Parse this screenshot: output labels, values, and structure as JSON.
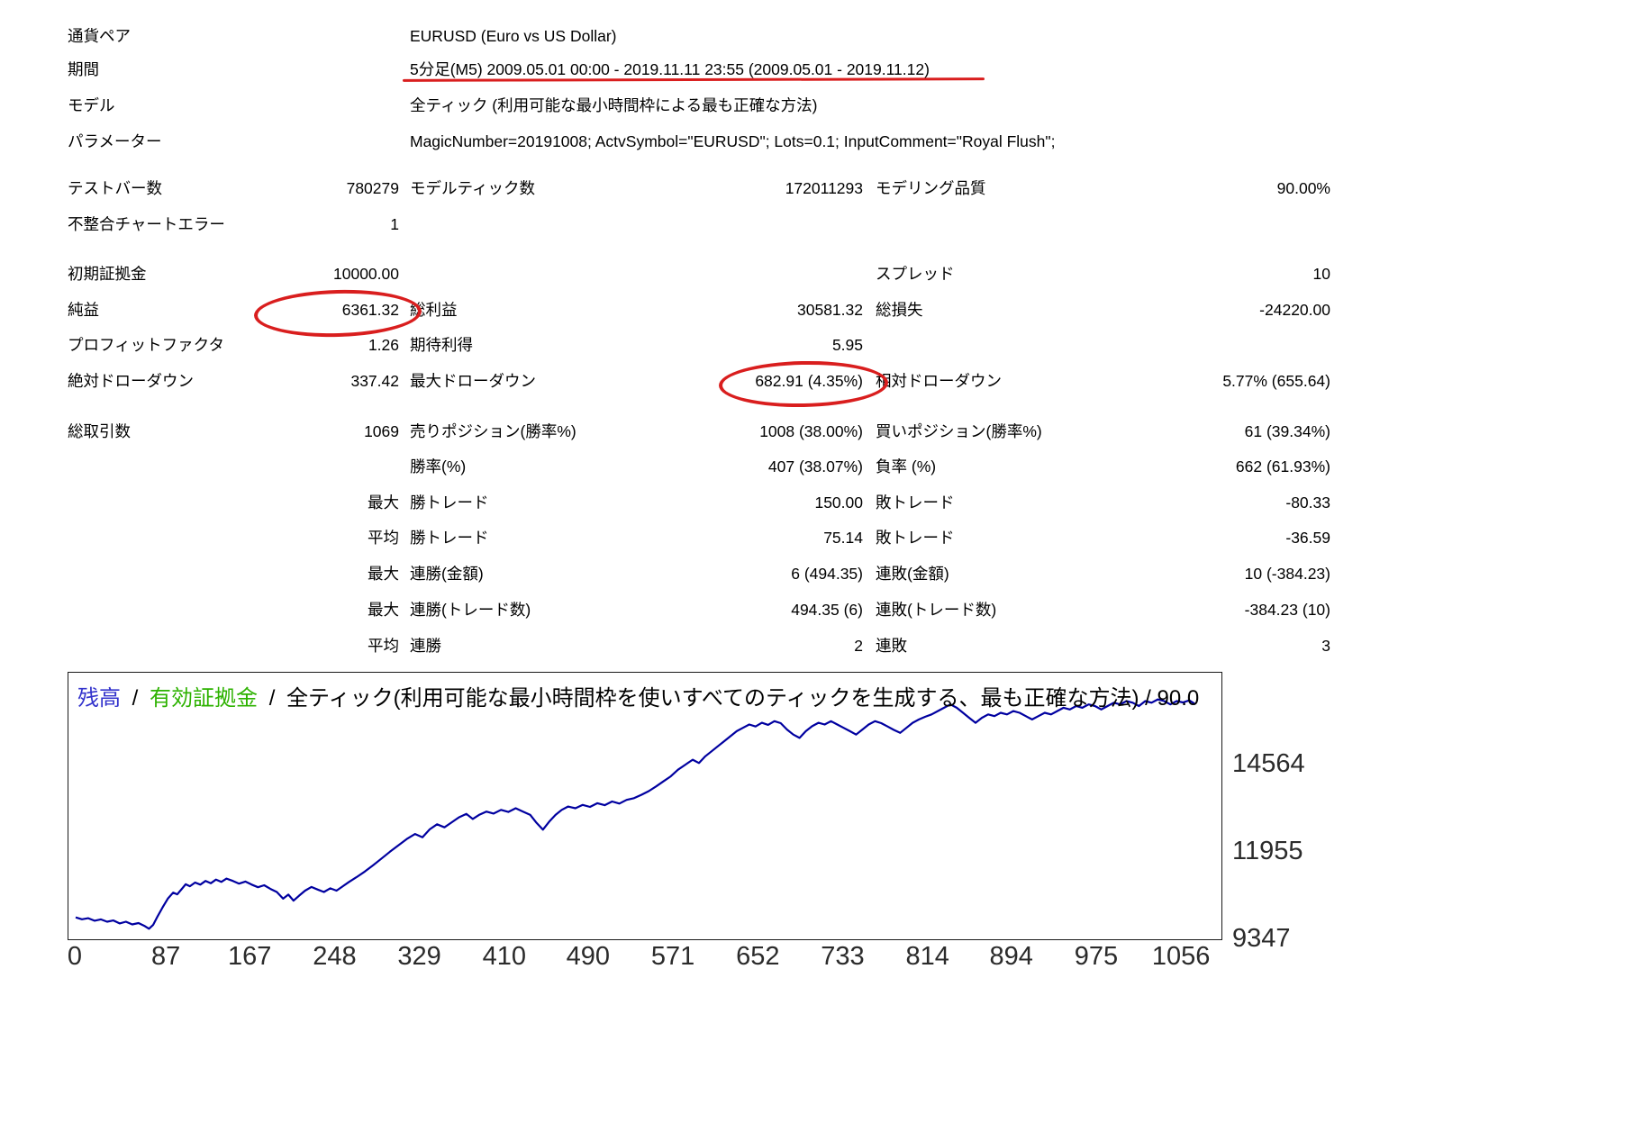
{
  "report": {
    "info": [
      {
        "label": "通貨ペア",
        "value": "EURUSD (Euro vs US Dollar)"
      },
      {
        "label": "期間",
        "value": "5分足(M5) 2009.05.01 00:00 - 2019.11.11 23:55 (2009.05.01 - 2019.11.12)"
      },
      {
        "label": "モデル",
        "value": "全ティック (利用可能な最小時間枠による最も正確な方法)"
      },
      {
        "label": "パラメーター",
        "value": "MagicNumber=20191008; ActvSymbol=\"EURUSD\"; Lots=0.1; InputComment=\"Royal Flush\";"
      }
    ],
    "test_bars": {
      "label": "テストバー数",
      "value": "780279"
    },
    "model_ticks": {
      "label": "モデルティック数",
      "value": "172011293"
    },
    "modelling_quality": {
      "label": "モデリング品質",
      "value": "90.00%"
    },
    "mismatched_errors": {
      "label": "不整合チャートエラー",
      "value": "1"
    },
    "initial_deposit": {
      "label": "初期証拠金",
      "value": "10000.00"
    },
    "spread": {
      "label": "スプレッド",
      "value": "10"
    },
    "net_profit": {
      "label": "純益",
      "value": "6361.32"
    },
    "gross_profit": {
      "label": "総利益",
      "value": "30581.32"
    },
    "gross_loss": {
      "label": "総損失",
      "value": "-24220.00"
    },
    "profit_factor": {
      "label": "プロフィットファクタ",
      "value": "1.26"
    },
    "expected_payoff": {
      "label": "期待利得",
      "value": "5.95"
    },
    "absolute_drawdown": {
      "label": "絶対ドローダウン",
      "value": "337.42"
    },
    "maximal_drawdown": {
      "label": "最大ドローダウン",
      "value": "682.91 (4.35%)"
    },
    "relative_drawdown": {
      "label": "相対ドローダウン",
      "value": "5.77% (655.64)"
    },
    "total_trades": {
      "label": "総取引数",
      "value": "1069"
    },
    "short_positions": {
      "label": "売りポジション(勝率%)",
      "value": "1008 (38.00%)"
    },
    "long_positions": {
      "label": "買いポジション(勝率%)",
      "value": "61 (39.34%)"
    },
    "profit_trades": {
      "label": "勝率(%)",
      "value": "407 (38.07%)"
    },
    "loss_trades": {
      "label": "負率 (%)",
      "value": "662 (61.93%)"
    },
    "largest": {
      "prefix": "最大",
      "win_label": "勝トレード",
      "win_value": "150.00",
      "loss_label": "敗トレード",
      "loss_value": "-80.33"
    },
    "average": {
      "prefix": "平均",
      "win_label": "勝トレード",
      "win_value": "75.14",
      "loss_label": "敗トレード",
      "loss_value": "-36.59"
    },
    "max_consecutive_amount": {
      "prefix": "最大",
      "win_label": "連勝(金額)",
      "win_value": "6 (494.35)",
      "loss_label": "連敗(金額)",
      "loss_value": "10 (-384.23)"
    },
    "max_consecutive_count": {
      "prefix": "最大",
      "win_label": "連勝(トレード数)",
      "win_value": "494.35 (6)",
      "loss_label": "連敗(トレード数)",
      "loss_value": "-384.23 (10)"
    },
    "avg_consecutive": {
      "prefix": "平均",
      "win_label": "連勝",
      "win_value": "2",
      "loss_label": "連敗",
      "loss_value": "3"
    }
  },
  "chart": {
    "legend": {
      "balance": "残高",
      "equity": "有効証拠金",
      "separator": "/",
      "description": "全ティック(利用可能な最小時間枠を使いすべてのティックを生成する、最も正確な方法) / 90.0"
    }
  },
  "colors": {
    "annotation_red": "#d91e1e",
    "legend_balance_blue": "#3333cc",
    "legend_equity_green": "#2db200",
    "curve_blue": "#0000a0",
    "axis_text": "#2b2b2b"
  },
  "chart_data": {
    "type": "line",
    "title": "残高 / 有効証拠金 / 全ティック(利用可能な最小時間枠を使いすべてのティックを生成する、最も正確な方法) / 90.0",
    "xlabel": "",
    "ylabel": "",
    "grid": false,
    "legend_position": "top-left",
    "x_ticks": [
      0,
      87,
      167,
      248,
      329,
      410,
      490,
      571,
      652,
      733,
      814,
      894,
      975,
      1056
    ],
    "y_ticks": [
      14564,
      11955,
      9347
    ],
    "xlim": [
      0,
      1080
    ],
    "ylim": [
      9347,
      17300
    ],
    "series": [
      {
        "name": "残高",
        "color": "#0000a0",
        "points": [
          [
            0,
            10000
          ],
          [
            6,
            9945
          ],
          [
            12,
            9975
          ],
          [
            18,
            9900
          ],
          [
            24,
            9940
          ],
          [
            30,
            9870
          ],
          [
            36,
            9910
          ],
          [
            42,
            9820
          ],
          [
            48,
            9870
          ],
          [
            54,
            9790
          ],
          [
            60,
            9830
          ],
          [
            66,
            9740
          ],
          [
            70,
            9662
          ],
          [
            74,
            9780
          ],
          [
            78,
            10020
          ],
          [
            83,
            10300
          ],
          [
            88,
            10560
          ],
          [
            93,
            10740
          ],
          [
            97,
            10690
          ],
          [
            101,
            10840
          ],
          [
            105,
            10990
          ],
          [
            109,
            10930
          ],
          [
            114,
            11040
          ],
          [
            119,
            10980
          ],
          [
            124,
            11090
          ],
          [
            129,
            11020
          ],
          [
            134,
            11130
          ],
          [
            139,
            11060
          ],
          [
            144,
            11160
          ],
          [
            150,
            11090
          ],
          [
            156,
            11010
          ],
          [
            162,
            11070
          ],
          [
            168,
            10980
          ],
          [
            174,
            10900
          ],
          [
            180,
            10960
          ],
          [
            186,
            10850
          ],
          [
            192,
            10760
          ],
          [
            198,
            10560
          ],
          [
            203,
            10680
          ],
          [
            208,
            10500
          ],
          [
            213,
            10640
          ],
          [
            219,
            10800
          ],
          [
            225,
            10910
          ],
          [
            231,
            10830
          ],
          [
            237,
            10760
          ],
          [
            243,
            10870
          ],
          [
            249,
            10800
          ],
          [
            255,
            10930
          ],
          [
            261,
            11060
          ],
          [
            268,
            11200
          ],
          [
            276,
            11370
          ],
          [
            284,
            11560
          ],
          [
            292,
            11760
          ],
          [
            300,
            11960
          ],
          [
            308,
            12150
          ],
          [
            316,
            12340
          ],
          [
            324,
            12490
          ],
          [
            331,
            12390
          ],
          [
            338,
            12630
          ],
          [
            345,
            12780
          ],
          [
            352,
            12690
          ],
          [
            359,
            12840
          ],
          [
            366,
            12990
          ],
          [
            373,
            13090
          ],
          [
            379,
            12940
          ],
          [
            385,
            13060
          ],
          [
            392,
            13160
          ],
          [
            399,
            13100
          ],
          [
            406,
            13210
          ],
          [
            413,
            13150
          ],
          [
            420,
            13260
          ],
          [
            427,
            13160
          ],
          [
            434,
            13060
          ],
          [
            440,
            12820
          ],
          [
            446,
            12620
          ],
          [
            452,
            12860
          ],
          [
            458,
            13060
          ],
          [
            464,
            13210
          ],
          [
            470,
            13310
          ],
          [
            477,
            13260
          ],
          [
            484,
            13360
          ],
          [
            491,
            13300
          ],
          [
            498,
            13410
          ],
          [
            505,
            13350
          ],
          [
            512,
            13460
          ],
          [
            519,
            13400
          ],
          [
            526,
            13510
          ],
          [
            533,
            13560
          ],
          [
            540,
            13660
          ],
          [
            547,
            13770
          ],
          [
            554,
            13910
          ],
          [
            561,
            14060
          ],
          [
            568,
            14210
          ],
          [
            575,
            14410
          ],
          [
            582,
            14560
          ],
          [
            589,
            14710
          ],
          [
            595,
            14610
          ],
          [
            601,
            14810
          ],
          [
            607,
            14960
          ],
          [
            613,
            15110
          ],
          [
            619,
            15260
          ],
          [
            625,
            15410
          ],
          [
            631,
            15560
          ],
          [
            637,
            15660
          ],
          [
            643,
            15760
          ],
          [
            649,
            15700
          ],
          [
            655,
            15810
          ],
          [
            661,
            15750
          ],
          [
            667,
            15860
          ],
          [
            673,
            15800
          ],
          [
            679,
            15610
          ],
          [
            685,
            15460
          ],
          [
            691,
            15360
          ],
          [
            697,
            15560
          ],
          [
            703,
            15710
          ],
          [
            709,
            15810
          ],
          [
            715,
            15760
          ],
          [
            721,
            15860
          ],
          [
            727,
            15760
          ],
          [
            733,
            15660
          ],
          [
            739,
            15560
          ],
          [
            745,
            15460
          ],
          [
            751,
            15610
          ],
          [
            757,
            15760
          ],
          [
            763,
            15860
          ],
          [
            769,
            15800
          ],
          [
            775,
            15700
          ],
          [
            781,
            15600
          ],
          [
            787,
            15510
          ],
          [
            793,
            15660
          ],
          [
            799,
            15810
          ],
          [
            805,
            15910
          ],
          [
            811,
            15990
          ],
          [
            817,
            16060
          ],
          [
            823,
            16160
          ],
          [
            829,
            16260
          ],
          [
            835,
            16360
          ],
          [
            841,
            16260
          ],
          [
            847,
            16110
          ],
          [
            853,
            15960
          ],
          [
            859,
            15810
          ],
          [
            865,
            15960
          ],
          [
            871,
            16060
          ],
          [
            877,
            16010
          ],
          [
            883,
            16110
          ],
          [
            889,
            16060
          ],
          [
            895,
            16160
          ],
          [
            901,
            16110
          ],
          [
            907,
            16010
          ],
          [
            913,
            15910
          ],
          [
            919,
            16010
          ],
          [
            925,
            16110
          ],
          [
            931,
            16060
          ],
          [
            937,
            16160
          ],
          [
            943,
            16260
          ],
          [
            949,
            16210
          ],
          [
            955,
            16310
          ],
          [
            961,
            16260
          ],
          [
            967,
            16360
          ],
          [
            973,
            16310
          ],
          [
            979,
            16210
          ],
          [
            985,
            16310
          ],
          [
            991,
            16410
          ],
          [
            997,
            16360
          ],
          [
            1003,
            16460
          ],
          [
            1009,
            16410
          ],
          [
            1015,
            16310
          ],
          [
            1021,
            16460
          ],
          [
            1027,
            16410
          ],
          [
            1033,
            16510
          ],
          [
            1039,
            16460
          ],
          [
            1045,
            16360
          ],
          [
            1051,
            16460
          ],
          [
            1057,
            16420
          ],
          [
            1063,
            16480
          ],
          [
            1069,
            16361
          ]
        ]
      }
    ]
  }
}
